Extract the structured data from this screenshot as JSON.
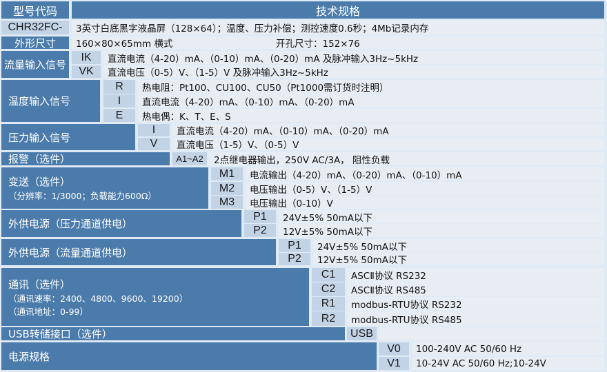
{
  "header": {
    "code_label": "型号代码",
    "spec_label": "技术规格"
  },
  "model": {
    "code": "CHR32FC-",
    "desc": "3英寸白底黑字液晶屏（128×64）；温度、压力补偿；测控速度0.6秒；4Mb记录内存"
  },
  "dimensions": {
    "label": "外形尺寸",
    "size": "160×80×65mm 横式",
    "cutout": "开孔尺寸：152×76"
  },
  "groups": [
    {
      "label": "流量输入信号",
      "options": [
        {
          "code": "IK",
          "desc": "直流电流（4-20）mA、（0-10）mA、（0-20）mA 及脉冲输入3Hz~5kHz"
        },
        {
          "code": "VK",
          "desc": "直流电压（0-5）V、（1-5）V 及脉冲输入3Hz~5kHz"
        }
      ]
    },
    {
      "label": "温度输入信号",
      "options": [
        {
          "code": "R",
          "desc": "热电阻：Pt100、CU100、CU50（Pt1000需订货时注明）"
        },
        {
          "code": "I",
          "desc": "直流电流（4-20）mA、（0-10）mA、（0-20）mA"
        },
        {
          "code": "E",
          "desc": "热电偶：K、T、E、S"
        }
      ]
    },
    {
      "label": "压力输入信号",
      "options": [
        {
          "code": "I",
          "desc": "直流电流（4-20）mA、（0-10）mA、（0-20）mA"
        },
        {
          "code": "V",
          "desc": "直流电压（1-5）V、（0-5）V"
        }
      ]
    },
    {
      "label": "报警（选件）",
      "options": [
        {
          "code": "A1~A2",
          "desc": "2点继电器输出，250V AC/3A， 阻性负载"
        }
      ]
    },
    {
      "label": "变送（选件）",
      "notes": [
        "（分辨率：1/3000；负载能力600Ω）"
      ],
      "options": [
        {
          "code": "M1",
          "desc": "电流输出（4-20）mA、（0-20）mA、（0-10）mA"
        },
        {
          "code": "M2",
          "desc": "电压输出（0-5）V、（1-5）V"
        },
        {
          "code": "M3",
          "desc": "电压输出（0-10）V"
        }
      ]
    },
    {
      "label": "外供电源（压力通道供电）",
      "options": [
        {
          "code": "P1",
          "desc": "24V±5%  50mA以下"
        },
        {
          "code": "P2",
          "desc": "12V±5%  50mA以下"
        }
      ]
    },
    {
      "label": "外供电源（流量通道供电）",
      "options": [
        {
          "code": "P1",
          "desc": "24V±5%  50mA以下"
        },
        {
          "code": "P2",
          "desc": "12V±5%  50mA以下"
        }
      ]
    },
    {
      "label": "通讯（选件）",
      "notes": [
        "（通讯速率：2400、4800、9600、19200）",
        "（通讯地址：0-99）"
      ],
      "options": [
        {
          "code": "C1",
          "desc": "ASCⅡ协议 RS232"
        },
        {
          "code": "C2",
          "desc": "ASCⅡ协议 RS485"
        },
        {
          "code": "R1",
          "desc": "modbus-RTU协议 RS232"
        },
        {
          "code": "R2",
          "desc": "modbus-RTU协议 RS485"
        }
      ]
    },
    {
      "label": "USB转储接口（选件）",
      "options": [
        {
          "code": "USB",
          "desc": ""
        }
      ]
    },
    {
      "label": "电源规格",
      "options": [
        {
          "code": "V0",
          "desc": "100-240V AC 50/60 Hz"
        },
        {
          "code": "V1",
          "desc": "10-24V AC 50/60 Hz;10-24V"
        }
      ]
    }
  ]
}
